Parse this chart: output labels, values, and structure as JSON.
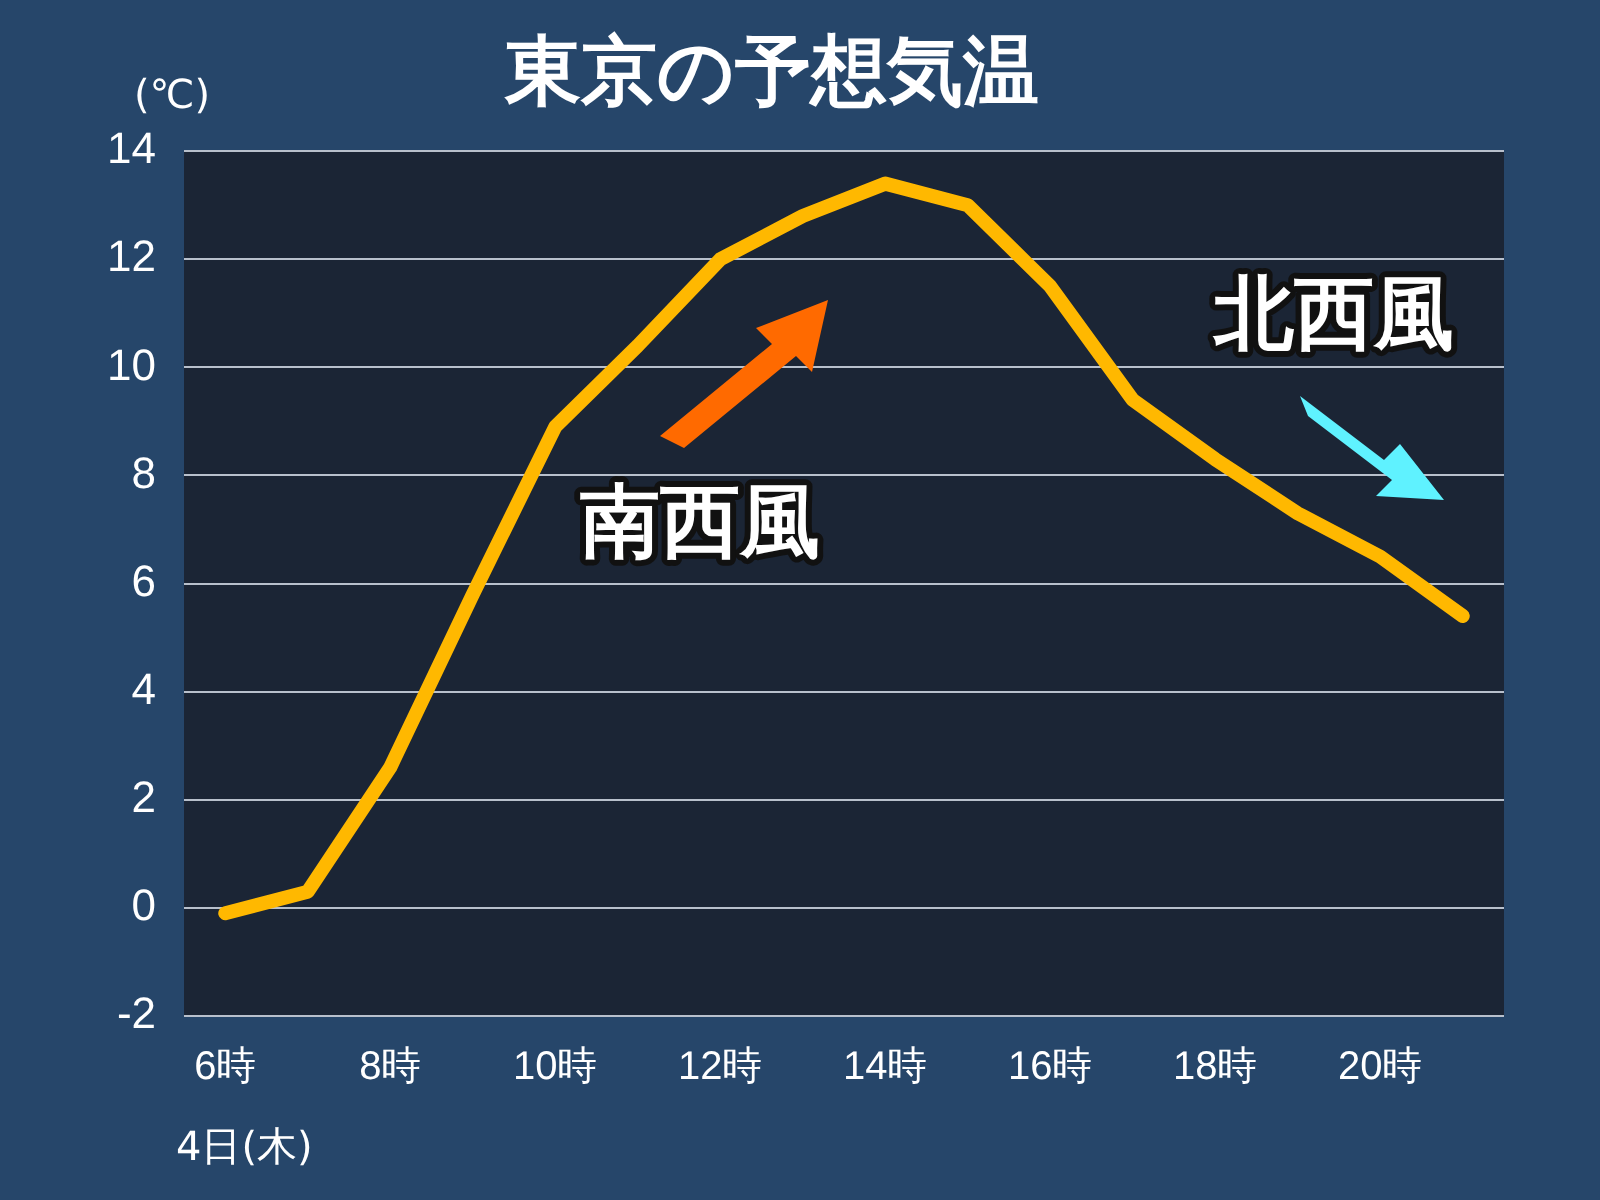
{
  "chart_data": {
    "type": "line",
    "title": "東京の予想気温",
    "ylabel": "(℃)",
    "categories": [
      "6時",
      null,
      "8時",
      null,
      "10時",
      null,
      "12時",
      null,
      "14時",
      null,
      "16時",
      null,
      "18時",
      null,
      "20時",
      null
    ],
    "series": [
      {
        "color": "#ffb800",
        "values": [
          -0.1,
          0.3,
          2.6,
          5.8,
          8.9,
          10.4,
          12.0,
          12.8,
          13.4,
          13.0,
          11.5,
          9.4,
          8.3,
          7.3,
          6.5,
          5.4
        ]
      }
    ],
    "ylim": [
      -2,
      14
    ],
    "yticks": [
      -2,
      0,
      2,
      4,
      6,
      8,
      10,
      12,
      14
    ],
    "grid": "y",
    "legend": false,
    "marker": "none",
    "line_style": "solid",
    "annotations": [
      "4日(木)",
      "南西風",
      "北西風"
    ]
  }
}
